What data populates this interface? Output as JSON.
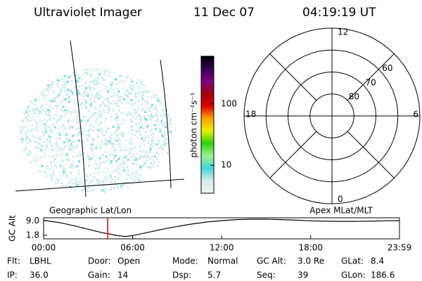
{
  "header": {
    "instrument": "Ultraviolet Imager",
    "date": "11 Dec 07",
    "time": "04:19:19 UT"
  },
  "colorbar": {
    "label": "photon cm⁻²s⁻¹",
    "scale": "log",
    "clim": [
      3.5,
      600
    ],
    "ticks": [
      10,
      100
    ],
    "colors": [
      "#f4f4f4",
      "#d8ecec",
      "#40d8d8",
      "#a0f090",
      "#30d010",
      "#e8f000",
      "#ffa000",
      "#e00000",
      "#a00010",
      "#800080",
      "#300050",
      "#000000"
    ]
  },
  "polar": {
    "rlim": [
      90,
      50
    ],
    "rings": [
      60,
      70,
      80
    ],
    "mlt_ticks": [
      0,
      6,
      12,
      18
    ]
  },
  "chart_data": {
    "type": "line",
    "annotations": [
      "Geographic Lat/Lon",
      "Apex MLat/MLT"
    ],
    "ylabel": "GC Alt",
    "x": [
      0,
      1,
      2,
      3,
      4,
      5,
      5.5,
      6,
      7,
      8,
      9,
      10,
      11,
      12,
      13,
      14,
      15,
      16,
      17,
      18,
      19,
      20,
      21,
      22,
      23,
      23.983
    ],
    "series": [
      {
        "name": "GC Alt",
        "color": "#000000",
        "values": [
          9.2,
          8.2,
          6.6,
          4.8,
          3.0,
          1.6,
          1.2,
          1.6,
          3.2,
          4.8,
          6.2,
          7.4,
          8.4,
          9.1,
          9.6,
          9.8,
          9.8,
          9.6,
          9.3,
          9.0,
          8.8,
          8.7,
          8.7,
          8.8,
          9.0,
          9.1
        ]
      }
    ],
    "marker": {
      "x": 4.322,
      "color": "#e00000"
    },
    "xlim": [
      0,
      23.983
    ],
    "ylim": [
      0,
      10.5
    ],
    "xticks": [
      {
        "value": 0,
        "label": "00:00"
      },
      {
        "value": 6,
        "label": "06:00"
      },
      {
        "value": 12,
        "label": "12:00"
      },
      {
        "value": 18,
        "label": "18:00"
      },
      {
        "value": 23.983,
        "label": "23:59"
      }
    ],
    "yticks": [
      1.8,
      {
        "value": 9,
        "label": "9.0"
      }
    ]
  },
  "footer": [
    [
      {
        "label": "Flt:",
        "value": "LBHL"
      },
      {
        "label": "Door:",
        "value": "Open"
      },
      {
        "label": "Mode:",
        "value": "Normal"
      },
      {
        "label": "GC Alt:",
        "value": "3.0 Re"
      },
      {
        "label": "GLat:",
        "value": "8.4"
      }
    ],
    [
      {
        "label": "IP:",
        "value": "36.0"
      },
      {
        "label": "Gain:",
        "value": "14"
      },
      {
        "label": "Dsp:",
        "value": "5.7"
      },
      {
        "label": "Seq:",
        "value": "39"
      },
      {
        "label": "GLon:",
        "value": "186.6"
      }
    ]
  ]
}
